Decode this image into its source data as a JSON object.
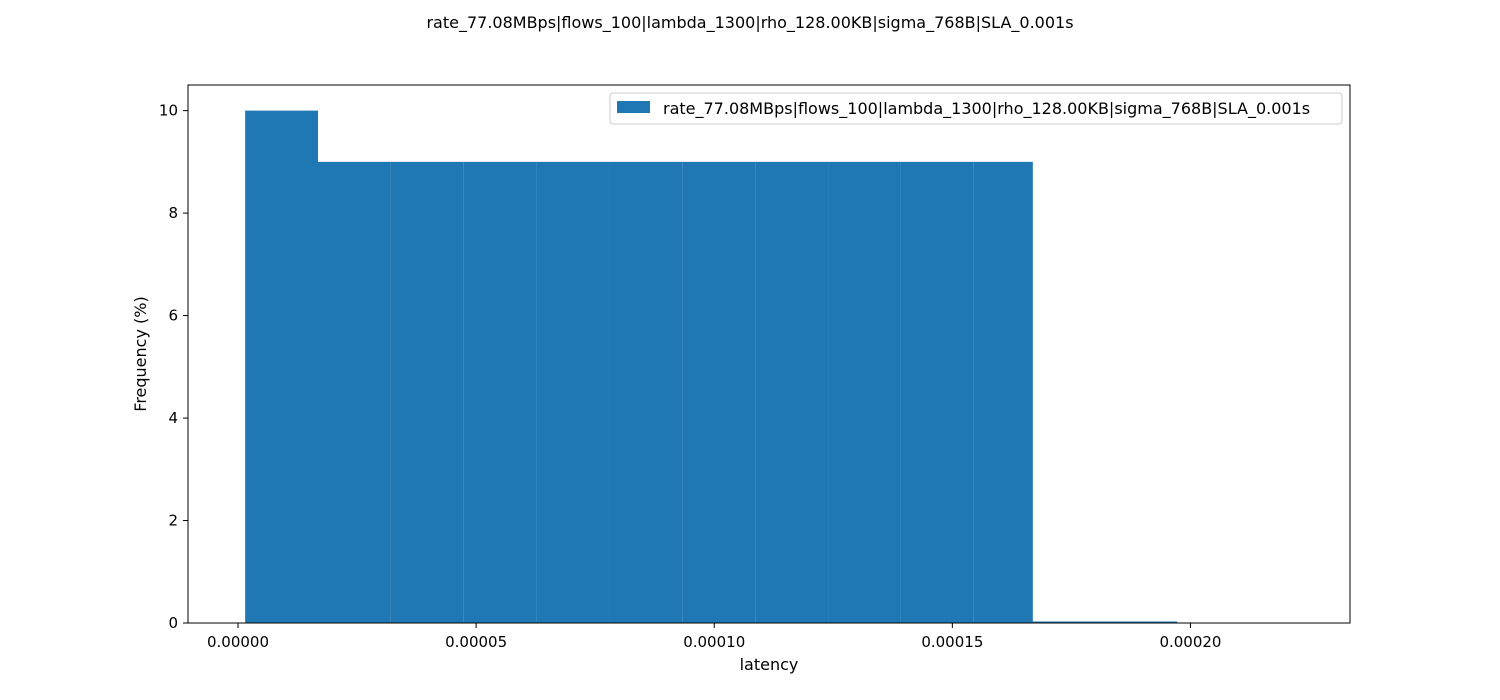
{
  "chart_data": {
    "type": "bar",
    "title": "rate_77.08MBps|flows_100|lambda_1300|rho_128.00KB|sigma_768B|SLA_0.001s",
    "xlabel": "latency",
    "ylabel": "Frequency (%)",
    "xlim": [
      -1.05e-05,
      0.0002335
    ],
    "ylim": [
      0,
      10.5
    ],
    "x_ticks": [
      0.0,
      5e-05,
      0.0001,
      0.00015,
      0.0002
    ],
    "x_tick_labels": [
      "0.00000",
      "0.00005",
      "0.00010",
      "0.00015",
      "0.00020"
    ],
    "y_ticks": [
      0,
      2,
      4,
      6,
      8,
      10
    ],
    "y_tick_labels": [
      "0",
      "2",
      "4",
      "6",
      "8",
      "10"
    ],
    "legend_location": "upper right",
    "grid": false,
    "series": [
      {
        "name": "rate_77.08MBps|flows_100|lambda_1300|rho_128.00KB|sigma_768B|SLA_0.001s",
        "color": "#1f77b4",
        "bins": [
          {
            "x0": 1.5e-06,
            "x1": 1.68e-05,
            "value": 10
          },
          {
            "x0": 1.68e-05,
            "x1": 3.21e-05,
            "value": 9
          },
          {
            "x0": 3.21e-05,
            "x1": 4.74e-05,
            "value": 9
          },
          {
            "x0": 4.74e-05,
            "x1": 6.27e-05,
            "value": 9
          },
          {
            "x0": 6.27e-05,
            "x1": 7.8e-05,
            "value": 9
          },
          {
            "x0": 7.8e-05,
            "x1": 9.33e-05,
            "value": 9
          },
          {
            "x0": 9.33e-05,
            "x1": 0.0001086,
            "value": 9
          },
          {
            "x0": 0.0001086,
            "x1": 0.0001239,
            "value": 9
          },
          {
            "x0": 0.0001239,
            "x1": 0.0001392,
            "value": 9
          },
          {
            "x0": 0.0001392,
            "x1": 0.0001545,
            "value": 9
          },
          {
            "x0": 0.0001545,
            "x1": 0.0001669,
            "value": 9
          },
          {
            "x0": 0.0001669,
            "x1": 0.0001972,
            "value": 0.03
          }
        ]
      }
    ]
  }
}
